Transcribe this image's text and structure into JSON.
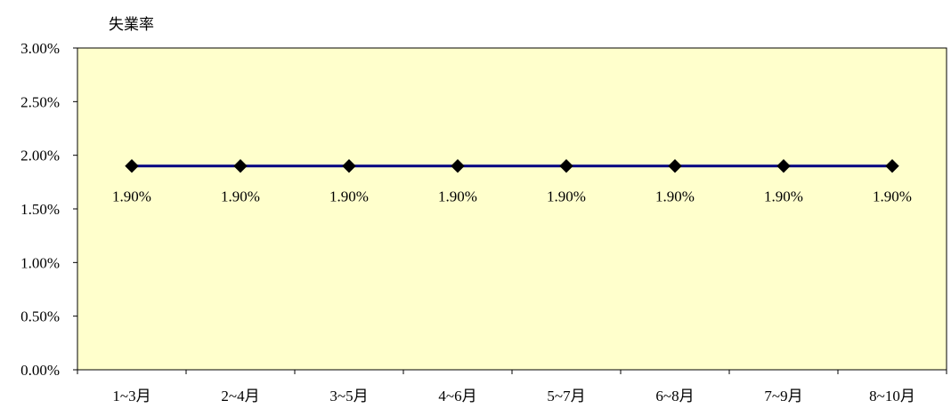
{
  "chart_data": {
    "type": "line",
    "ylabel": "失業率",
    "categories": [
      "1~3月",
      "2~4月",
      "3~5月",
      "4~6月",
      "5~7月",
      "6~8月",
      "7~9月",
      "8~10月"
    ],
    "values": [
      1.9,
      1.9,
      1.9,
      1.9,
      1.9,
      1.9,
      1.9,
      1.9
    ],
    "data_labels": [
      "1.90%",
      "1.90%",
      "1.90%",
      "1.90%",
      "1.90%",
      "1.90%",
      "1.90%",
      "1.90%"
    ],
    "yticks": [
      "0.00%",
      "0.50%",
      "1.00%",
      "1.50%",
      "2.00%",
      "2.50%",
      "3.00%"
    ],
    "ylim": [
      0,
      3
    ],
    "grid": false,
    "legend": "none",
    "marker": "diamond"
  },
  "colors": {
    "plot_background": "#FFFFCC",
    "line": "#000080",
    "marker": "#000000",
    "axis": "#000000"
  }
}
